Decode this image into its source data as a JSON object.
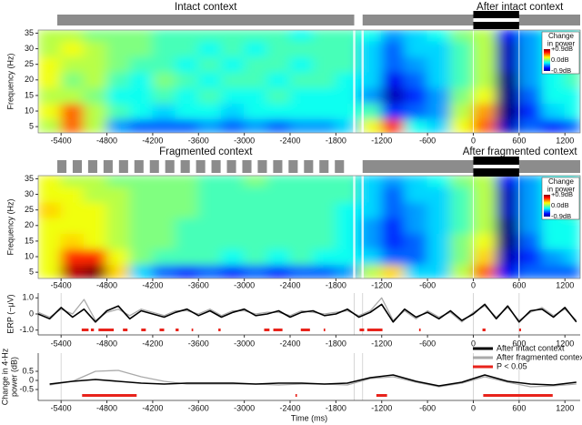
{
  "chart_data": [
    {
      "type": "heatmap",
      "contexts": [
        {
          "label": "Intact context",
          "start": -5450,
          "end": -1560
        },
        {
          "label": "After intact context",
          "start": -1450,
          "end": 1400,
          "stimulus": [
            0,
            600
          ]
        }
      ],
      "ylabel": "Frequency (Hz)",
      "x": [
        -5550,
        -5250,
        -4950,
        -4650,
        -4350,
        -4050,
        -3750,
        -3450,
        -3150,
        -2850,
        -2550,
        -2250,
        -1950,
        -1650,
        -1350,
        -1050,
        -750,
        -450,
        -150,
        150,
        450,
        750,
        1050,
        1350
      ],
      "y": [
        5,
        10,
        15,
        20,
        25,
        30,
        35
      ],
      "z": [
        [
          0.1,
          0.5,
          0.1,
          -0.4,
          -0.5,
          -0.5,
          -0.5,
          -0.4,
          -0.5,
          -0.4,
          -0.5,
          -0.4,
          -0.4,
          -0.3,
          0.2,
          0.6,
          -0.2,
          -0.3,
          0.2,
          0.5,
          -0.8,
          -0.5,
          -0.6,
          -0.5
        ],
        [
          0.2,
          0.5,
          0.1,
          -0.1,
          -0.2,
          -0.3,
          -0.2,
          -0.2,
          -0.3,
          -0.2,
          -0.2,
          -0.2,
          -0.2,
          -0.2,
          -0.1,
          -0.6,
          -0.5,
          -0.4,
          0.1,
          0.4,
          -0.9,
          -0.6,
          -0.3,
          -0.2
        ],
        [
          0.1,
          0.1,
          0,
          -0.2,
          -0.2,
          -0.1,
          -0.2,
          -0.1,
          -0.2,
          -0.2,
          -0.1,
          -0.2,
          -0.2,
          -0.2,
          -0.4,
          -0.8,
          -0.6,
          -0.4,
          0,
          0.2,
          -0.9,
          -0.5,
          -0.2,
          -0.2
        ],
        [
          0.2,
          0,
          0.1,
          -0.1,
          -0.2,
          0,
          -0.1,
          -0.2,
          -0.1,
          -0.1,
          -0.2,
          -0.1,
          -0.1,
          -0.2,
          -0.3,
          -0.7,
          -0.5,
          -0.3,
          -0.1,
          0.1,
          -0.9,
          -0.4,
          -0.2,
          -0.1
        ],
        [
          0.2,
          0.1,
          0.1,
          0,
          -0.1,
          -0.1,
          -0.2,
          -0.1,
          -0.2,
          -0.1,
          -0.1,
          -0.2,
          -0.1,
          -0.1,
          -0.3,
          -0.5,
          -0.4,
          -0.3,
          -0.1,
          0.1,
          -0.8,
          -0.4,
          -0.2,
          -0.1
        ],
        [
          0.1,
          0.2,
          0.1,
          0,
          0,
          -0.1,
          -0.1,
          -0.2,
          -0.1,
          -0.2,
          -0.1,
          -0.1,
          -0.1,
          -0.1,
          -0.3,
          -0.5,
          -0.3,
          -0.3,
          -0.1,
          0.1,
          -0.8,
          -0.4,
          -0.2,
          -0.2
        ],
        [
          0.1,
          0.1,
          0,
          0,
          0,
          -0.1,
          -0.1,
          -0.1,
          -0.1,
          -0.1,
          -0.1,
          -0.2,
          -0.1,
          -0.1,
          -0.2,
          -0.4,
          -0.3,
          -0.2,
          0,
          0.1,
          -0.7,
          -0.4,
          -0.2,
          -0.2
        ]
      ],
      "zlim": [
        -0.9,
        0.9
      ],
      "colorbar": {
        "title": [
          "Change",
          "in power"
        ],
        "ticks": [
          {
            "value": 0.9,
            "label": "+0.9dB"
          },
          {
            "value": 0,
            "label": "0.0dB"
          },
          {
            "value": -0.9,
            "label": "-0.9dB"
          }
        ]
      },
      "xlim": [
        -5700,
        1400
      ],
      "ylim": [
        3,
        36
      ],
      "xticks": [
        -5400,
        -4800,
        -4200,
        -3600,
        -3000,
        -2400,
        -1800,
        -1200,
        -600,
        0,
        600,
        1200
      ],
      "yticks": [
        5,
        10,
        15,
        20,
        25,
        30,
        35
      ],
      "vlines": [
        -1560,
        -1450,
        0,
        600
      ]
    },
    {
      "type": "heatmap",
      "contexts": [
        {
          "label": "Fragmented context",
          "start": -5450,
          "end": -1560,
          "blocks": [
            [
              -5450,
              -5330
            ],
            [
              -5248,
              -5128
            ],
            [
              -5046,
              -4926
            ],
            [
              -4844,
              -4724
            ],
            [
              -4642,
              -4522
            ],
            [
              -4440,
              -4320
            ],
            [
              -4238,
              -4118
            ],
            [
              -4036,
              -3916
            ],
            [
              -3834,
              -3714
            ],
            [
              -3632,
              -3512
            ],
            [
              -3430,
              -3310
            ],
            [
              -3228,
              -3108
            ],
            [
              -3026,
              -2906
            ],
            [
              -2824,
              -2704
            ],
            [
              -2622,
              -2502
            ],
            [
              -2420,
              -2300
            ],
            [
              -2218,
              -2098
            ],
            [
              -2016,
              -1896
            ],
            [
              -1814,
              -1694
            ]
          ]
        },
        {
          "label": "After fragmented context",
          "start": -1450,
          "end": 1400,
          "stimulus": [
            0,
            600
          ]
        }
      ],
      "ylabel": "Frequency (Hz)",
      "x": [
        -5550,
        -5250,
        -4950,
        -4650,
        -4350,
        -4050,
        -3750,
        -3450,
        -3150,
        -2850,
        -2550,
        -2250,
        -1950,
        -1650,
        -1350,
        -1050,
        -750,
        -450,
        -150,
        150,
        450,
        750,
        1050,
        1350
      ],
      "y": [
        5,
        10,
        15,
        20,
        25,
        30,
        35
      ],
      "z": [
        [
          0.2,
          0.8,
          0.9,
          0.3,
          -0.3,
          -0.5,
          -0.6,
          -0.5,
          -0.6,
          -0.5,
          -0.6,
          -0.5,
          -0.5,
          -0.4,
          0.1,
          0.3,
          -0.3,
          -0.3,
          0.1,
          0.5,
          -0.7,
          -0.5,
          -0.5,
          -0.5
        ],
        [
          0.2,
          0.6,
          0.6,
          0.2,
          0,
          -0.1,
          -0.1,
          -0.1,
          -0.2,
          -0.1,
          -0.2,
          -0.1,
          -0.2,
          -0.2,
          -0.3,
          -0.5,
          -0.5,
          -0.3,
          0,
          0.3,
          -0.8,
          -0.6,
          -0.4,
          -0.3
        ],
        [
          0.2,
          0.3,
          0.2,
          0.1,
          0,
          0,
          -0.1,
          -0.1,
          -0.1,
          -0.1,
          -0.1,
          -0.1,
          -0.1,
          -0.2,
          -0.4,
          -0.6,
          -0.5,
          -0.3,
          0,
          0.2,
          -0.9,
          -0.5,
          -0.2,
          -0.2
        ],
        [
          0.2,
          0.2,
          0.2,
          0.1,
          0,
          0,
          -0.1,
          -0.1,
          -0.1,
          -0.1,
          -0.1,
          -0.1,
          -0.1,
          -0.2,
          -0.4,
          -0.6,
          -0.4,
          -0.3,
          -0.1,
          0.1,
          -0.9,
          -0.4,
          -0.2,
          -0.2
        ],
        [
          0.3,
          0.2,
          0.2,
          0.1,
          0,
          0,
          0,
          -0.1,
          -0.1,
          -0.1,
          -0.1,
          -0.1,
          -0.1,
          -0.2,
          -0.3,
          -0.5,
          -0.4,
          -0.3,
          -0.1,
          0.1,
          -0.8,
          -0.4,
          -0.2,
          -0.1
        ],
        [
          0.2,
          0.2,
          0.1,
          0.1,
          0,
          0,
          0,
          -0.1,
          -0.1,
          -0.1,
          -0.1,
          -0.1,
          -0.1,
          -0.1,
          -0.3,
          -0.5,
          -0.3,
          -0.3,
          -0.1,
          0.1,
          -0.8,
          -0.4,
          -0.2,
          -0.2
        ],
        [
          0.2,
          0.1,
          0.1,
          0,
          0,
          0,
          0,
          -0.1,
          -0.1,
          0,
          -0.1,
          -0.1,
          -0.1,
          -0.1,
          -0.3,
          -0.4,
          -0.3,
          -0.2,
          0,
          0.1,
          -0.7,
          -0.4,
          -0.2,
          -0.2
        ]
      ],
      "zlim": [
        -0.9,
        0.9
      ],
      "colorbar": {
        "title": [
          "Change",
          "in power"
        ],
        "ticks": [
          {
            "value": 0.9,
            "label": "+0.9dB"
          },
          {
            "value": 0,
            "label": "0.0dB"
          },
          {
            "value": -0.9,
            "label": "-0.9dB"
          }
        ]
      },
      "xlim": [
        -5700,
        1400
      ],
      "ylim": [
        3,
        36
      ],
      "xticks": [
        -5400,
        -4800,
        -4200,
        -3600,
        -3000,
        -2400,
        -1800,
        -1200,
        -600,
        0,
        600,
        1200
      ],
      "yticks": [
        5,
        10,
        15,
        20,
        25,
        30,
        35
      ],
      "vlines": [
        -1560,
        -1450,
        0,
        600
      ]
    },
    {
      "type": "line",
      "ylabel": "ERP (~μV)",
      "x": [
        -5700,
        -5550,
        -5400,
        -5250,
        -5100,
        -4950,
        -4800,
        -4650,
        -4500,
        -4350,
        -4200,
        -4050,
        -3900,
        -3750,
        -3600,
        -3450,
        -3300,
        -3150,
        -3000,
        -2850,
        -2700,
        -2550,
        -2400,
        -2250,
        -2100,
        -1950,
        -1800,
        -1650,
        -1500,
        -1350,
        -1200,
        -1050,
        -900,
        -750,
        -600,
        -450,
        -300,
        -150,
        0,
        150,
        300,
        450,
        600,
        750,
        900,
        1050,
        1200,
        1350
      ],
      "series": [
        {
          "color": "#000000",
          "values": [
            0,
            -0.3,
            0.4,
            -0.2,
            0.3,
            -0.5,
            0.2,
            0.5,
            -0.3,
            0.2,
            0,
            -0.2,
            0.1,
            0.3,
            -0.1,
            0.2,
            -0.2,
            0.1,
            0.3,
            -0.1,
            0,
            0.2,
            -0.2,
            0.1,
            0.2,
            -0.1,
            0,
            0.3,
            -0.2,
            0.1,
            0.6,
            -0.5,
            0.3,
            -0.2,
            0.1,
            -0.3,
            0.2,
            -0.4,
            0,
            0.6,
            -0.3,
            0.5,
            -0.5,
            0.2,
            0.3,
            -0.2,
            0.4,
            -0.5
          ]
        },
        {
          "color": "#aaaaaa",
          "values": [
            0.1,
            -0.2,
            0.3,
            0,
            0.9,
            -0.4,
            0.1,
            0.3,
            -0.1,
            0.3,
            0.1,
            -0.1,
            0.2,
            0.2,
            0,
            0.3,
            -0.1,
            0.2,
            0.2,
            0,
            0.1,
            0.1,
            -0.1,
            0.2,
            0.1,
            0,
            0.1,
            0.2,
            -0.1,
            0.2,
            1.0,
            -0.4,
            0.2,
            -0.3,
            0.2,
            -0.2,
            0.1,
            -0.5,
            0.1,
            0.5,
            -0.2,
            0.4,
            -0.4,
            0.1,
            0.4,
            -0.1,
            0.3,
            -0.4
          ]
        }
      ],
      "significance": {
        "color": "#e8231b",
        "intervals": [
          [
            -5130,
            -5040
          ],
          [
            -5010,
            -4970
          ],
          [
            -4910,
            -4710
          ],
          [
            -4590,
            -4530
          ],
          [
            -4350,
            -4290
          ],
          [
            -4110,
            -4050
          ],
          [
            -3900,
            -3860
          ],
          [
            -3690,
            -3670
          ],
          [
            -3340,
            -3310
          ],
          [
            -2740,
            -2670
          ],
          [
            -2620,
            -2500
          ],
          [
            -2260,
            -2140
          ],
          [
            -1960,
            -1940
          ],
          [
            -1490,
            -1430
          ],
          [
            -1390,
            -1190
          ],
          [
            -710,
            -690
          ],
          [
            120,
            160
          ],
          [
            600,
            625
          ]
        ]
      },
      "xlim": [
        -5700,
        1400
      ],
      "ylim": [
        -1.3,
        1.3
      ],
      "xticks": [
        -5400,
        -4800,
        -4200,
        -3600,
        -3000,
        -2400,
        -1800,
        -1200,
        -600,
        0,
        600,
        1200
      ],
      "yticks": [
        {
          "value": 1,
          "label": "1.0"
        },
        0,
        {
          "value": -1,
          "label": "-1.0"
        }
      ],
      "vlines": [
        -5400,
        -1560,
        -1450,
        0,
        600
      ]
    },
    {
      "type": "line",
      "ylabel": [
        "Change in 4-Hz",
        "power (dB)"
      ],
      "xlabel": "Time (ms)",
      "x": [
        -5550,
        -5250,
        -4950,
        -4650,
        -4350,
        -4050,
        -3750,
        -3450,
        -3150,
        -2850,
        -2550,
        -2250,
        -1950,
        -1650,
        -1350,
        -1050,
        -750,
        -450,
        -150,
        150,
        450,
        750,
        1050,
        1350
      ],
      "series": [
        {
          "name": "After intact context",
          "color": "#000000",
          "values": [
            -0.2,
            -0.05,
            0.05,
            -0.05,
            -0.15,
            -0.2,
            -0.15,
            -0.15,
            -0.15,
            -0.2,
            -0.15,
            -0.15,
            -0.2,
            -0.15,
            0.15,
            0.3,
            -0.05,
            -0.3,
            -0.1,
            0.3,
            -0.05,
            -0.2,
            -0.25,
            -0.1
          ]
        },
        {
          "name": "After fragmented context",
          "color": "#aaaaaa",
          "values": [
            -0.25,
            -0.05,
            0.5,
            0.55,
            0.2,
            -0.05,
            -0.2,
            -0.2,
            -0.2,
            -0.2,
            -0.25,
            -0.2,
            -0.2,
            -0.25,
            0.1,
            0.2,
            -0.1,
            -0.35,
            -0.15,
            0.2,
            -0.1,
            -0.35,
            -0.3,
            -0.2
          ]
        }
      ],
      "significance": {
        "name": "P < 0.05",
        "color": "#e8231b",
        "intervals": [
          [
            -5125,
            -4410
          ],
          [
            -2330,
            -2310
          ],
          [
            -1270,
            -1130
          ],
          [
            130,
            1040
          ]
        ]
      },
      "legend": "upper right",
      "xlim": [
        -5700,
        1400
      ],
      "ylim": [
        -1.1,
        1.5
      ],
      "xticks": [
        -5400,
        -4800,
        -4200,
        -3600,
        -3000,
        -2400,
        -1800,
        -1200,
        -600,
        0,
        600,
        1200
      ],
      "yticks": [
        0.5,
        0,
        -0.5
      ],
      "vlines": [
        -5400,
        -1560,
        -1450,
        0,
        600
      ]
    }
  ]
}
